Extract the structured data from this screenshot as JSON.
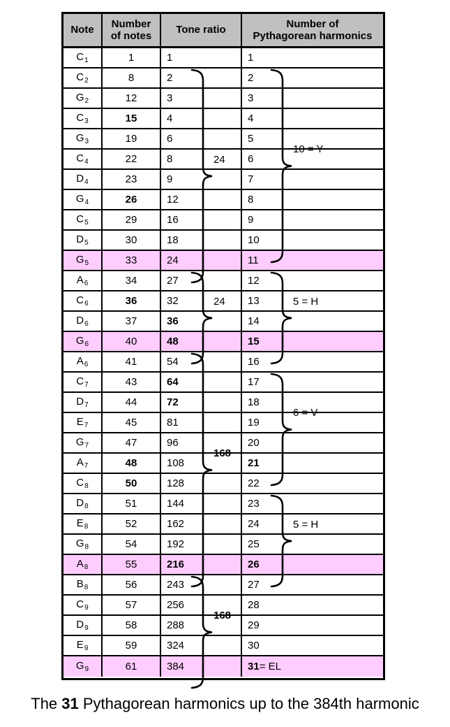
{
  "table": {
    "headers": {
      "note": "Note",
      "num_notes": "Number\nof notes",
      "tone_ratio": "Tone ratio",
      "harmonics": "Number of\nPythagorean harmonics"
    },
    "rows": [
      {
        "note_letter": "C",
        "note_sub": "1",
        "num_notes": "1",
        "num_notes_bold": false,
        "tone_ratio": "1",
        "tone_ratio_bold": false,
        "harmonic": "1",
        "harmonic_bold": false,
        "harmonic_suffix": "",
        "highlighted": false
      },
      {
        "note_letter": "C",
        "note_sub": "2",
        "num_notes": "8",
        "num_notes_bold": false,
        "tone_ratio": "2",
        "tone_ratio_bold": false,
        "harmonic": "2",
        "harmonic_bold": false,
        "harmonic_suffix": "",
        "highlighted": false
      },
      {
        "note_letter": "G",
        "note_sub": "2",
        "num_notes": "12",
        "num_notes_bold": false,
        "tone_ratio": "3",
        "tone_ratio_bold": false,
        "harmonic": "3",
        "harmonic_bold": false,
        "harmonic_suffix": "",
        "highlighted": false
      },
      {
        "note_letter": "C",
        "note_sub": "3",
        "num_notes": "15",
        "num_notes_bold": true,
        "tone_ratio": "4",
        "tone_ratio_bold": false,
        "harmonic": "4",
        "harmonic_bold": false,
        "harmonic_suffix": "",
        "highlighted": false
      },
      {
        "note_letter": "G",
        "note_sub": "3",
        "num_notes": "19",
        "num_notes_bold": false,
        "tone_ratio": "6",
        "tone_ratio_bold": false,
        "harmonic": "5",
        "harmonic_bold": false,
        "harmonic_suffix": "",
        "highlighted": false
      },
      {
        "note_letter": "C",
        "note_sub": "4",
        "num_notes": "22",
        "num_notes_bold": false,
        "tone_ratio": "8",
        "tone_ratio_bold": false,
        "harmonic": "6",
        "harmonic_bold": false,
        "harmonic_suffix": "",
        "highlighted": false
      },
      {
        "note_letter": "D",
        "note_sub": "4",
        "num_notes": "23",
        "num_notes_bold": false,
        "tone_ratio": "9",
        "tone_ratio_bold": false,
        "harmonic": "7",
        "harmonic_bold": false,
        "harmonic_suffix": "",
        "highlighted": false
      },
      {
        "note_letter": "G",
        "note_sub": "4",
        "num_notes": "26",
        "num_notes_bold": true,
        "tone_ratio": "12",
        "tone_ratio_bold": false,
        "harmonic": "8",
        "harmonic_bold": false,
        "harmonic_suffix": "",
        "highlighted": false
      },
      {
        "note_letter": "C",
        "note_sub": "5",
        "num_notes": "29",
        "num_notes_bold": false,
        "tone_ratio": "16",
        "tone_ratio_bold": false,
        "harmonic": "9",
        "harmonic_bold": false,
        "harmonic_suffix": "",
        "highlighted": false
      },
      {
        "note_letter": "D",
        "note_sub": "5",
        "num_notes": "30",
        "num_notes_bold": false,
        "tone_ratio": "18",
        "tone_ratio_bold": false,
        "harmonic": "10",
        "harmonic_bold": false,
        "harmonic_suffix": "",
        "highlighted": false
      },
      {
        "note_letter": "G",
        "note_sub": "5",
        "num_notes": "33",
        "num_notes_bold": false,
        "tone_ratio": "24",
        "tone_ratio_bold": false,
        "harmonic": "11",
        "harmonic_bold": false,
        "harmonic_suffix": "",
        "highlighted": true
      },
      {
        "note_letter": "A",
        "note_sub": "6",
        "num_notes": "34",
        "num_notes_bold": false,
        "tone_ratio": "27",
        "tone_ratio_bold": false,
        "harmonic": "12",
        "harmonic_bold": false,
        "harmonic_suffix": "",
        "highlighted": false
      },
      {
        "note_letter": "C",
        "note_sub": "6",
        "num_notes": "36",
        "num_notes_bold": true,
        "tone_ratio": "32",
        "tone_ratio_bold": false,
        "harmonic": "13",
        "harmonic_bold": false,
        "harmonic_suffix": "",
        "highlighted": false
      },
      {
        "note_letter": "D",
        "note_sub": "6",
        "num_notes": "37",
        "num_notes_bold": false,
        "tone_ratio": "36",
        "tone_ratio_bold": true,
        "harmonic": "14",
        "harmonic_bold": false,
        "harmonic_suffix": "",
        "highlighted": false
      },
      {
        "note_letter": "G",
        "note_sub": "6",
        "num_notes": "40",
        "num_notes_bold": false,
        "tone_ratio": "48",
        "tone_ratio_bold": true,
        "harmonic": "15",
        "harmonic_bold": true,
        "harmonic_suffix": "",
        "highlighted": true
      },
      {
        "note_letter": "A",
        "note_sub": "6",
        "num_notes": "41",
        "num_notes_bold": false,
        "tone_ratio": "54",
        "tone_ratio_bold": false,
        "harmonic": "16",
        "harmonic_bold": false,
        "harmonic_suffix": "",
        "highlighted": false
      },
      {
        "note_letter": "C",
        "note_sub": "7",
        "num_notes": "43",
        "num_notes_bold": false,
        "tone_ratio": "64",
        "tone_ratio_bold": true,
        "harmonic": "17",
        "harmonic_bold": false,
        "harmonic_suffix": "",
        "highlighted": false
      },
      {
        "note_letter": "D",
        "note_sub": "7",
        "num_notes": "44",
        "num_notes_bold": false,
        "tone_ratio": "72",
        "tone_ratio_bold": true,
        "harmonic": "18",
        "harmonic_bold": false,
        "harmonic_suffix": "",
        "highlighted": false
      },
      {
        "note_letter": "E",
        "note_sub": "7",
        "num_notes": "45",
        "num_notes_bold": false,
        "tone_ratio": "81",
        "tone_ratio_bold": false,
        "harmonic": "19",
        "harmonic_bold": false,
        "harmonic_suffix": "",
        "highlighted": false
      },
      {
        "note_letter": "G",
        "note_sub": "7",
        "num_notes": "47",
        "num_notes_bold": false,
        "tone_ratio": "96",
        "tone_ratio_bold": false,
        "harmonic": "20",
        "harmonic_bold": false,
        "harmonic_suffix": "",
        "highlighted": false
      },
      {
        "note_letter": "A",
        "note_sub": "7",
        "num_notes": "48",
        "num_notes_bold": true,
        "tone_ratio": "108",
        "tone_ratio_bold": false,
        "harmonic": "21",
        "harmonic_bold": true,
        "harmonic_suffix": "",
        "highlighted": false
      },
      {
        "note_letter": "C",
        "note_sub": "8",
        "num_notes": "50",
        "num_notes_bold": true,
        "tone_ratio": "128",
        "tone_ratio_bold": false,
        "harmonic": "22",
        "harmonic_bold": false,
        "harmonic_suffix": "",
        "highlighted": false
      },
      {
        "note_letter": "D",
        "note_sub": "8",
        "num_notes": "51",
        "num_notes_bold": false,
        "tone_ratio": "144",
        "tone_ratio_bold": false,
        "harmonic": "23",
        "harmonic_bold": false,
        "harmonic_suffix": "",
        "highlighted": false
      },
      {
        "note_letter": "E",
        "note_sub": "8",
        "num_notes": "52",
        "num_notes_bold": false,
        "tone_ratio": "162",
        "tone_ratio_bold": false,
        "harmonic": "24",
        "harmonic_bold": false,
        "harmonic_suffix": "",
        "highlighted": false
      },
      {
        "note_letter": "G",
        "note_sub": "8",
        "num_notes": "54",
        "num_notes_bold": false,
        "tone_ratio": "192",
        "tone_ratio_bold": false,
        "harmonic": "25",
        "harmonic_bold": false,
        "harmonic_suffix": "",
        "highlighted": false
      },
      {
        "note_letter": "A",
        "note_sub": "8",
        "num_notes": "55",
        "num_notes_bold": false,
        "tone_ratio": "216",
        "tone_ratio_bold": true,
        "harmonic": "26",
        "harmonic_bold": true,
        "harmonic_suffix": "",
        "highlighted": true
      },
      {
        "note_letter": "B",
        "note_sub": "8",
        "num_notes": "56",
        "num_notes_bold": false,
        "tone_ratio": "243",
        "tone_ratio_bold": false,
        "harmonic": "27",
        "harmonic_bold": false,
        "harmonic_suffix": "",
        "highlighted": false
      },
      {
        "note_letter": "C",
        "note_sub": "9",
        "num_notes": "57",
        "num_notes_bold": false,
        "tone_ratio": "256",
        "tone_ratio_bold": false,
        "harmonic": "28",
        "harmonic_bold": false,
        "harmonic_suffix": "",
        "highlighted": false
      },
      {
        "note_letter": "D",
        "note_sub": "9",
        "num_notes": "58",
        "num_notes_bold": false,
        "tone_ratio": "288",
        "tone_ratio_bold": false,
        "harmonic": "29",
        "harmonic_bold": false,
        "harmonic_suffix": "",
        "highlighted": false
      },
      {
        "note_letter": "E",
        "note_sub": "9",
        "num_notes": "59",
        "num_notes_bold": false,
        "tone_ratio": "324",
        "tone_ratio_bold": false,
        "harmonic": "30",
        "harmonic_bold": false,
        "harmonic_suffix": "",
        "highlighted": false
      },
      {
        "note_letter": "G",
        "note_sub": "9",
        "num_notes": "61",
        "num_notes_bold": false,
        "tone_ratio": "384",
        "tone_ratio_bold": false,
        "harmonic": "31",
        "harmonic_bold": true,
        "harmonic_suffix": " = EL",
        "highlighted": true
      }
    ]
  },
  "annotations": {
    "braces": [
      {
        "column": "tone_ratio",
        "from_row": 0,
        "to_row": 10,
        "label": "24",
        "bold": false
      },
      {
        "column": "tone_ratio",
        "from_row": 10,
        "to_row": 14,
        "label": "24",
        "bold": false
      },
      {
        "column": "tone_ratio",
        "from_row": 14,
        "to_row": 25,
        "label": "168",
        "bold": true
      },
      {
        "column": "tone_ratio",
        "from_row": 25,
        "to_row": 30,
        "label": "168",
        "bold": true
      },
      {
        "column": "harmonics",
        "from_row": 0,
        "to_row": 9,
        "label": "10 = Y",
        "bold": false
      },
      {
        "column": "harmonics",
        "from_row": 10,
        "to_row": 14,
        "label": "5 = H",
        "bold": false
      },
      {
        "column": "harmonics",
        "from_row": 15,
        "to_row": 20,
        "label": "6 = V",
        "bold": false
      },
      {
        "column": "harmonics",
        "from_row": 21,
        "to_row": 25,
        "label": "5 = H",
        "bold": false
      }
    ]
  },
  "caption": {
    "prefix": "The ",
    "bold_number": "31",
    "suffix": " Pythagorean harmonics up to the 384th harmonic"
  },
  "colors": {
    "highlight_row": "#FFCCFF",
    "header_bg": "#C0C0C0",
    "grid_line": "#000000",
    "page_bg": "#FFFFFF"
  }
}
